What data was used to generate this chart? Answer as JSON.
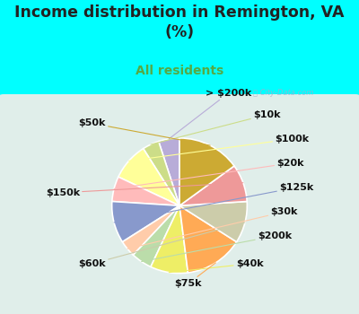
{
  "title": "Income distribution in Remington, VA\n(%)",
  "subtitle": "All residents",
  "title_color": "#222222",
  "subtitle_color": "#55aa44",
  "bg_color": "#00ffff",
  "chart_bg_left": "#e8f5e9",
  "chart_bg_right": "#e0f0f8",
  "labels": [
    "> $200k",
    "$10k",
    "$100k",
    "$20k",
    "$125k",
    "$30k",
    "$200k",
    "$40k",
    "$75k",
    "$60k",
    "$150k",
    "$50k"
  ],
  "values": [
    5,
    4,
    9,
    6,
    10,
    4,
    5,
    9,
    14,
    10,
    9,
    15
  ],
  "colors": [
    "#b8acd8",
    "#ccdd88",
    "#ffff99",
    "#ffbbbb",
    "#8899cc",
    "#ffccaa",
    "#bbddaa",
    "#eeee66",
    "#ffaa55",
    "#ccccaa",
    "#ee9999",
    "#ccaa33"
  ],
  "line_colors": [
    "#b8acd8",
    "#ccdd88",
    "#ffff99",
    "#ffbbbb",
    "#8899cc",
    "#ffccaa",
    "#bbddaa",
    "#eeee66",
    "#ffaa55",
    "#ccccaa",
    "#ee9999",
    "#ccaa33"
  ],
  "label_fontsize": 8,
  "title_fontsize": 12.5,
  "subtitle_fontsize": 10
}
